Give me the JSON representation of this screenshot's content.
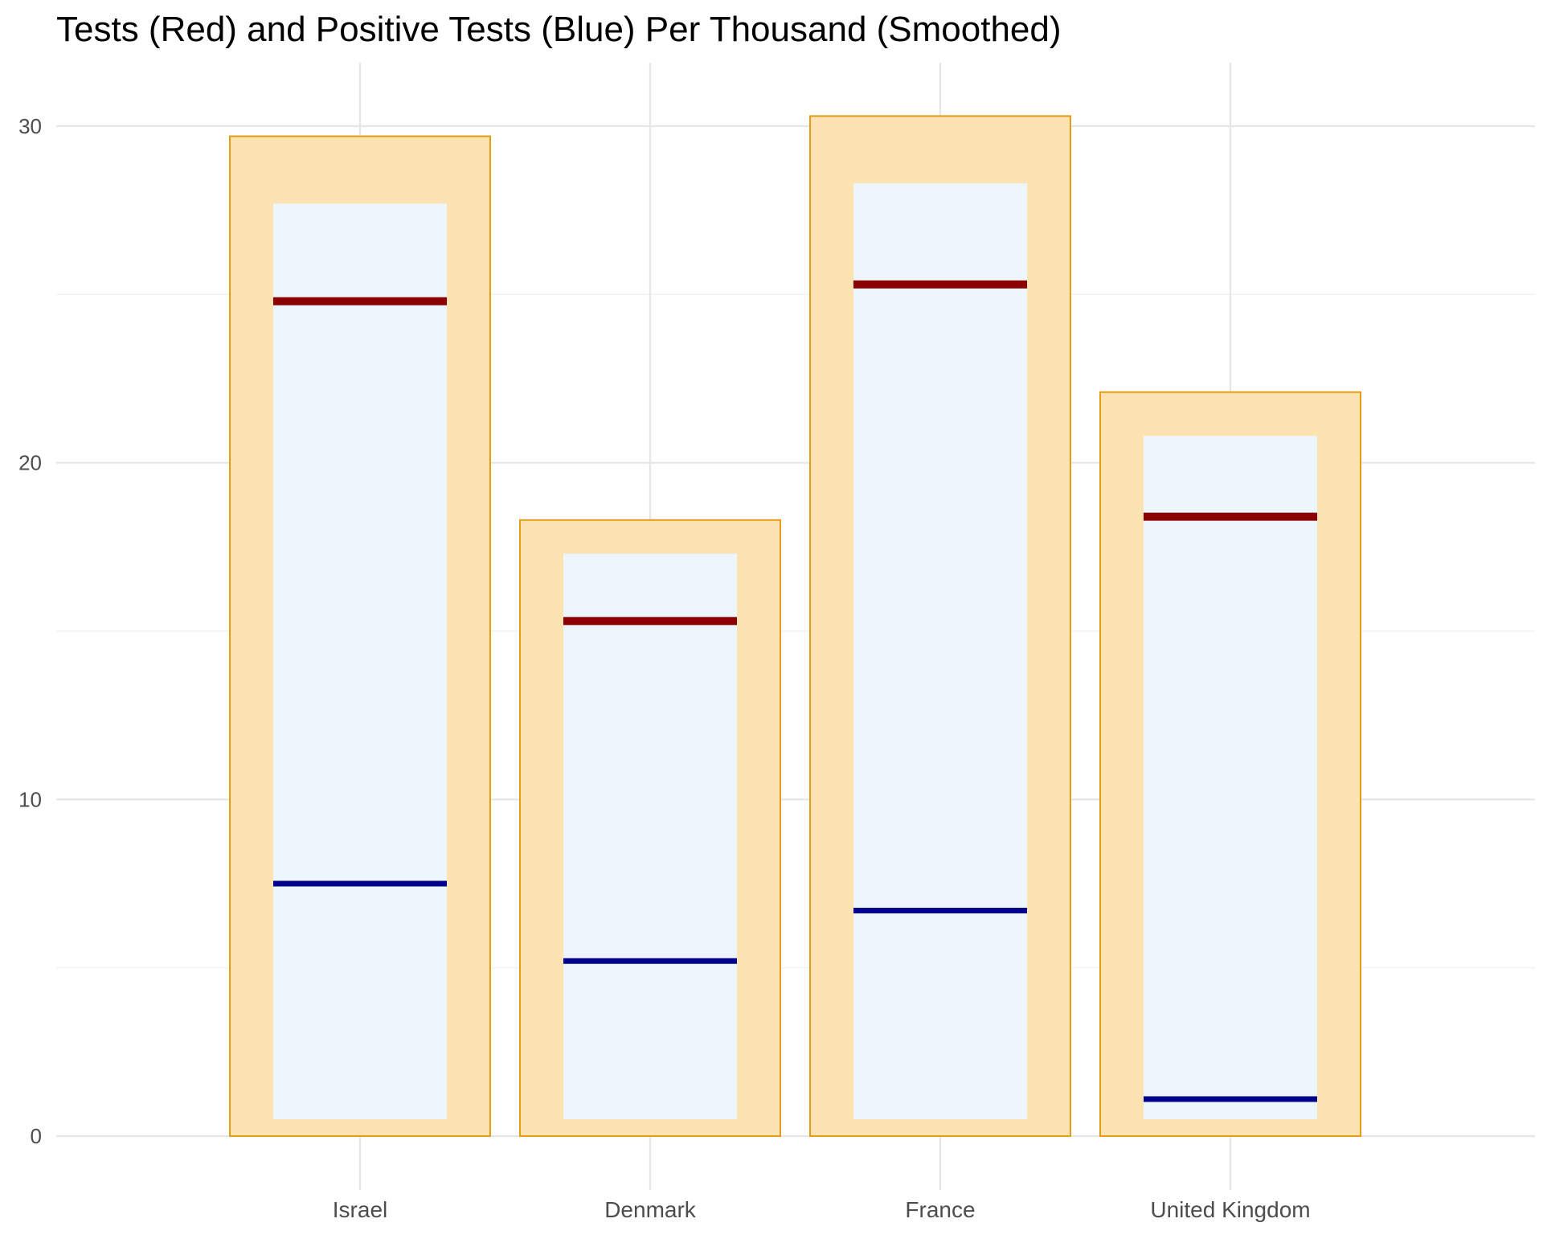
{
  "chart_data": {
    "type": "bar",
    "title": "Tests (Red) and Positive Tests (Blue) Per Thousand (Smoothed)",
    "xlabel": "",
    "ylabel": "",
    "categories": [
      "Israel",
      "Denmark",
      "France",
      "United Kingdom"
    ],
    "series": [
      {
        "values": [
          29.7,
          18.3,
          30.3,
          22.1
        ]
      },
      {
        "values": [
          27.7,
          17.3,
          28.3,
          20.8
        ]
      },
      {
        "values": [
          24.8,
          15.3,
          25.3,
          18.4
        ]
      },
      {
        "values": [
          7.5,
          5.2,
          6.7,
          1.1
        ]
      }
    ],
    "inner_base": 0.5,
    "ylim": [
      0,
      31.5
    ],
    "yticks": [
      0,
      10,
      20,
      30
    ],
    "grid": true,
    "legend": "none",
    "colors": {
      "outer_fill": "#FDE3B2",
      "outer_border": "#E59C16",
      "inner_fill": "#EEF6FD",
      "tests_line": "#8B0000",
      "positive_line": "#00008B",
      "grid_major": "#E6E6E6",
      "grid_minor": "#F2F2F2",
      "tick_text": "#4D4D4D"
    }
  }
}
